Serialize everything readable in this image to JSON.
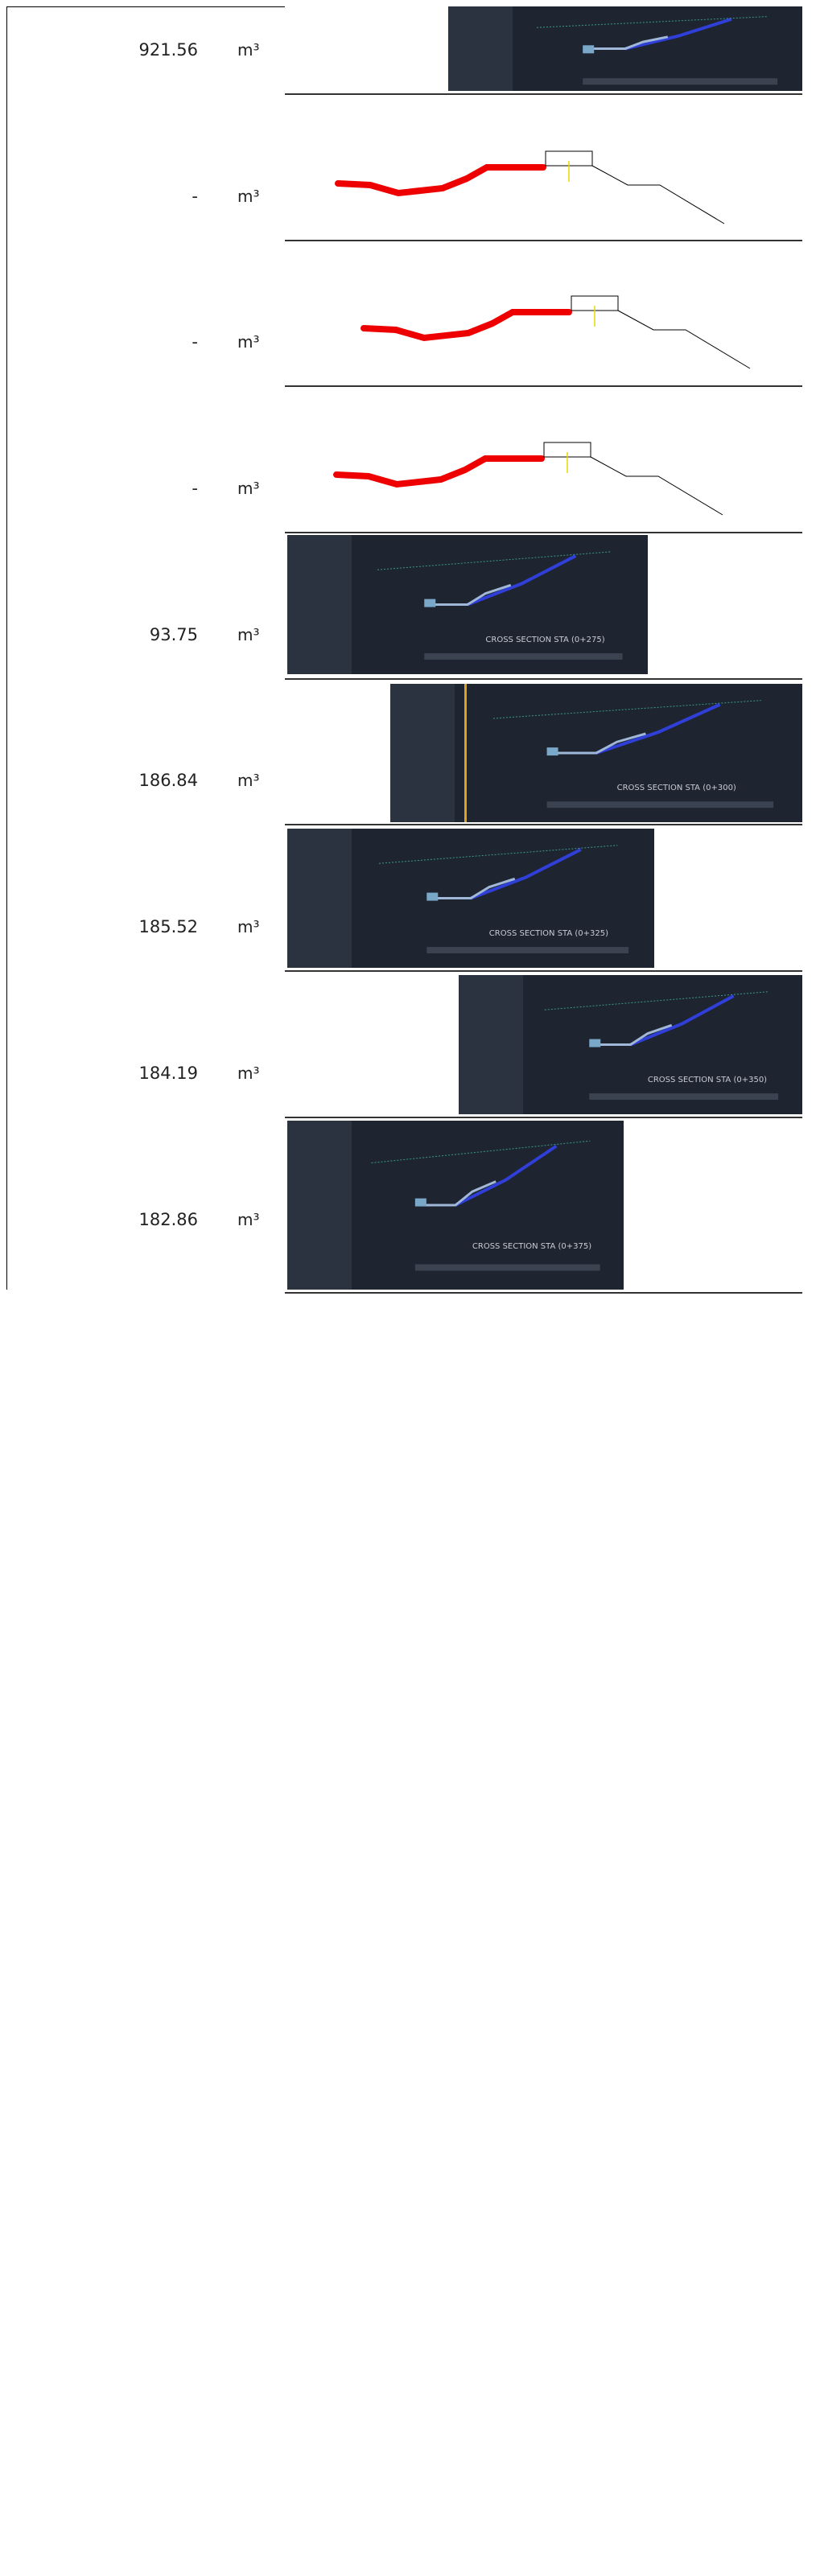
{
  "rows": [
    {
      "quantity": "921.56",
      "unit": "m³"
    },
    {
      "quantity": "-",
      "unit": "m³"
    },
    {
      "quantity": "-",
      "unit": "m³"
    },
    {
      "quantity": "-",
      "unit": "m³"
    },
    {
      "quantity": "93.75",
      "unit": "m³",
      "caption": "CROSS SECTION STA (0+275)"
    },
    {
      "quantity": "186.84",
      "unit": "m³",
      "caption": "CROSS SECTION STA (0+300)"
    },
    {
      "quantity": "185.52",
      "unit": "m³",
      "caption": "CROSS SECTION STA (0+325)"
    },
    {
      "quantity": "184.19",
      "unit": "m³",
      "caption": "CROSS SECTION STA (0+350)"
    },
    {
      "quantity": "182.86",
      "unit": "m³",
      "caption": "CROSS SECTION STA (0+375)"
    }
  ]
}
